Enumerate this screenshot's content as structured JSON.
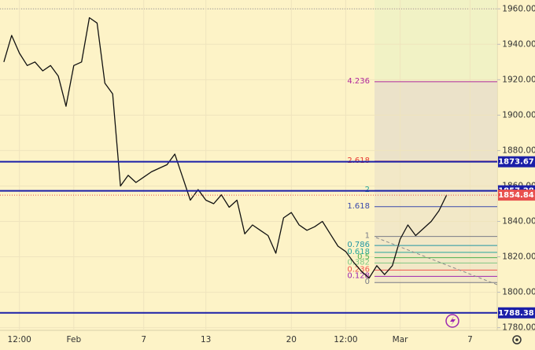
{
  "chart_data": {
    "type": "line",
    "categories": [
      null,
      null,
      "12:00",
      null,
      null,
      null,
      null,
      null,
      null,
      "Feb",
      null,
      null,
      null,
      null,
      null,
      null,
      null,
      null,
      "7",
      null,
      null,
      null,
      null,
      null,
      null,
      null,
      "13",
      null,
      null,
      null,
      null,
      null,
      null,
      null,
      null,
      null,
      null,
      "20",
      null,
      null,
      null,
      null,
      null,
      null,
      "12:00",
      null,
      null,
      null,
      null,
      null,
      null,
      "Mar",
      null,
      null,
      null,
      null,
      null,
      null,
      null,
      null,
      "7",
      null,
      null,
      null
    ],
    "values": [
      1930,
      1945,
      1935,
      1928,
      1930,
      1925,
      1928,
      1922,
      1905,
      1928,
      1930,
      1955,
      1952,
      1918,
      1912,
      1860,
      1866,
      1862,
      1865,
      1868,
      1870,
      1872,
      1878,
      1865,
      1852,
      1858,
      1852,
      1850,
      1855,
      1848,
      1852,
      1833,
      1838,
      1835,
      1832,
      1822,
      1842,
      1845,
      1838,
      1835,
      1837,
      1840,
      1833,
      1826,
      1823,
      1817,
      1812,
      1808,
      1815,
      1810,
      1815,
      1830,
      1838,
      1832,
      1836,
      1840,
      1846,
      1855,
      null,
      null,
      null,
      null,
      null,
      null
    ],
    "color": "#111111",
    "ylim": [
      1778.5,
      1965
    ],
    "yticks": [
      {
        "value": 1780,
        "label": "1780.00"
      },
      {
        "value": 1800,
        "label": "1800.00"
      },
      {
        "value": 1820,
        "label": "1820.00"
      },
      {
        "value": 1840,
        "label": "1840.00"
      },
      {
        "value": 1860,
        "label": "1860.00"
      },
      {
        "value": 1880,
        "label": "1880.00"
      },
      {
        "value": 1900,
        "label": "1900.00"
      },
      {
        "value": 1920,
        "label": "1920.00"
      },
      {
        "value": 1940,
        "label": "1940.00"
      },
      {
        "value": 1960,
        "label": "1960.00"
      }
    ],
    "grid": true,
    "hlines": [
      1873.67,
      1857.28,
      1788.38
    ],
    "hline_color": "#1b1fa8",
    "last_price": 1854.84,
    "last_price_color": "#e8514f",
    "fib_levels": [
      {
        "ratio": 4.236,
        "value": 1918.9,
        "color": "#b0279c"
      },
      {
        "ratio": 2.618,
        "value": 1874,
        "color": "#e53935"
      },
      {
        "ratio": 2,
        "value": 1857.5,
        "color": "#26a69a"
      },
      {
        "ratio": 1.618,
        "value": 1848.3,
        "color": "#3949ab"
      },
      {
        "ratio": 1,
        "value": 1831.5,
        "color": "#787b86"
      },
      {
        "ratio": 0.786,
        "value": 1826.4,
        "color": "#2196a3"
      },
      {
        "ratio": 0.618,
        "value": 1822.5,
        "color": "#26a69a"
      },
      {
        "ratio": 0.5,
        "value": 1819.5,
        "color": "#4caf50"
      },
      {
        "ratio": 0.382,
        "value": 1816.5,
        "color": "#81c784"
      },
      {
        "ratio": 0.236,
        "value": 1812.5,
        "color": "#ef5350"
      },
      {
        "ratio": 0.128,
        "value": 1809,
        "color": "#9c27b0"
      },
      {
        "ratio": 0,
        "value": 1805.5,
        "color": "#787b86"
      }
    ]
  }
}
